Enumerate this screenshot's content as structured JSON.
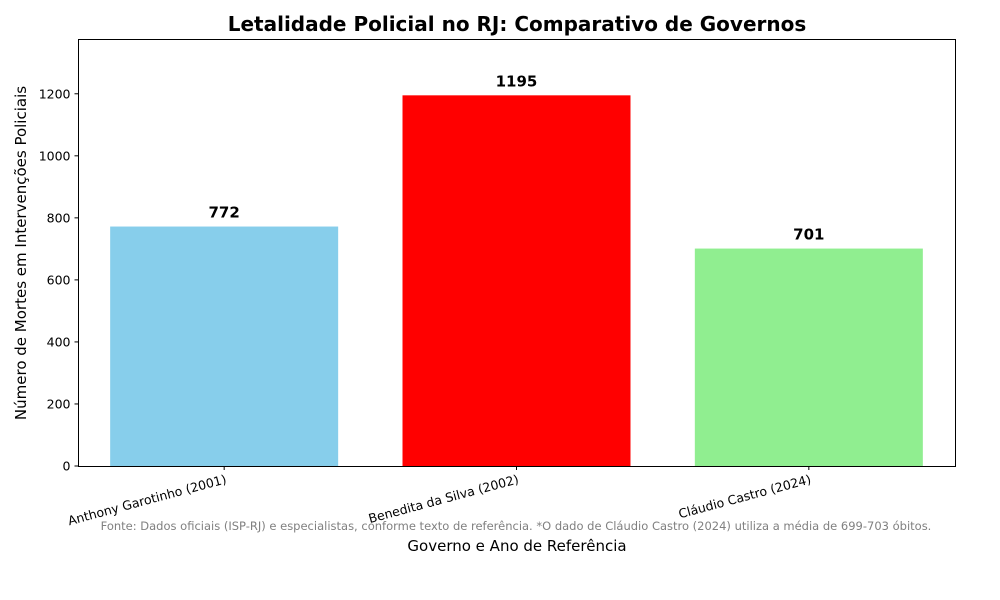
{
  "chart_data": {
    "type": "bar",
    "title": "Letalidade Policial no RJ: Comparativo de Governos",
    "xlabel": "Governo e Ano de Referência",
    "ylabel": "Número de Mortes em Intervenções Policiais",
    "categories": [
      "Anthony Garotinho (2001)",
      "Benedita da Silva (2002)",
      "Cláudio Castro (2024)"
    ],
    "values": [
      772,
      1195,
      701
    ],
    "data_labels": [
      "772",
      "1195",
      "701"
    ],
    "colors": [
      "#87ceeb",
      "#ff0000",
      "#90ee90"
    ],
    "ylim": [
      0,
      1375
    ],
    "yticks": [
      0,
      200,
      400,
      600,
      800,
      1000,
      1200
    ],
    "grid": false,
    "footnote": "Fonte: Dados oficiais (ISP-RJ) e especialistas, conforme texto de referência. *O dado de Cláudio Castro (2024) utiliza a média de 699-703 óbitos."
  }
}
